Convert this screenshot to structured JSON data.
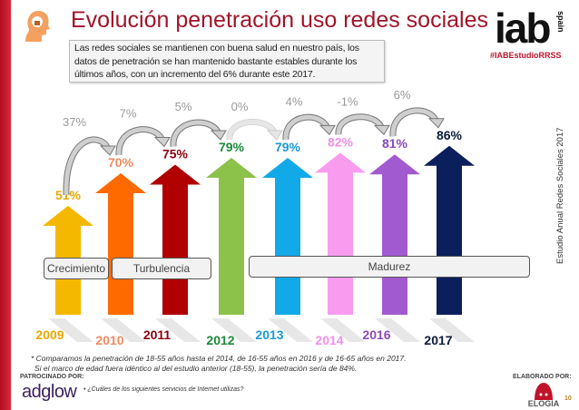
{
  "header": {
    "title": "Evolución penetración uso redes sociales",
    "intro": "Las redes sociales se mantienen con buena salud en nuestro país, los datos de penetración se han mantenido  bastante estables durante los últimos años, con un incremento del 6% durante este 2017.",
    "logo": "iab",
    "logo_sub": "spain",
    "hashtag": "#IABEstudioRRSS"
  },
  "side_label": "Estudio Anual Redes Sociales 2017",
  "phases": [
    "Crecimiento",
    "Turbulencia",
    "Madurez"
  ],
  "chart_data": {
    "type": "bar",
    "categories": [
      "2009",
      "2010",
      "2011",
      "2012",
      "2013",
      "2014",
      "2016",
      "2017"
    ],
    "values": [
      51,
      70,
      75,
      79,
      79,
      82,
      81,
      86
    ],
    "value_labels": [
      "51%",
      "70%",
      "75%",
      "79%",
      "79%",
      "82%",
      "81%",
      "86%"
    ],
    "changes": [
      "37%",
      "7%",
      "5%",
      "0%",
      "4%",
      "-1%",
      "6%"
    ],
    "colors": [
      "#f5b800",
      "#ff6a00",
      "#b00000",
      "#8cc24a",
      "#12a9e8",
      "#f99cf0",
      "#a25ad0",
      "#0a1f5c"
    ],
    "label_colors": [
      "#e8a800",
      "#f08a60",
      "#8a0010",
      "#1a8a3a",
      "#1a9ad8",
      "#f090e8",
      "#8a4ab8",
      "#0a1a3a"
    ]
  },
  "footer": {
    "note1": "* Comparamos la penetración de 18-55 años hasta el 2014, de 16-55 años en 2016 y de 16-65 años en 2017.",
    "note2": "Si el marco de edad fuera idéntico al del estudio anterior (18-55), la penetración sería de 84%.",
    "sponsor_label": "PATROCINADO POR:",
    "sponsor": "adglow",
    "question": "¿Cuáles de los siguientes servicios de Internet utilizas?",
    "made_by": "ELABORADO POR:",
    "maker": "ELOGIA",
    "page": "10"
  }
}
